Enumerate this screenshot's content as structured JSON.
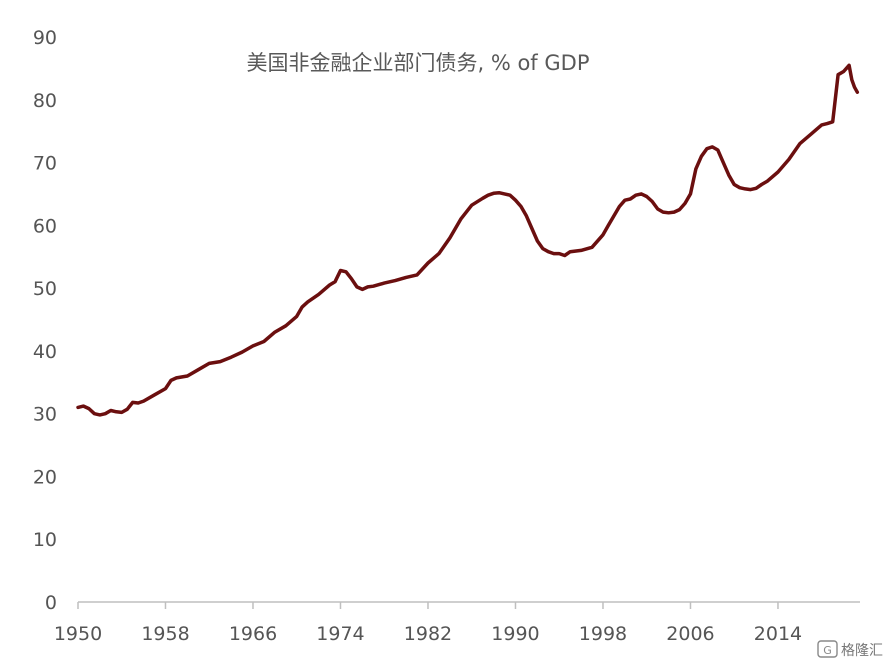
{
  "chart_data": {
    "type": "line",
    "title": "美国非金融企业部门债务, % of GDP",
    "xlabel": "",
    "ylabel": "",
    "xlim": [
      1950,
      2021.5
    ],
    "ylim": [
      0,
      90
    ],
    "xticks": [
      "1950",
      "1958",
      "1966",
      "1974",
      "1982",
      "1990",
      "1998",
      "2006",
      "2014"
    ],
    "yticks": [
      "0",
      "10",
      "20",
      "30",
      "40",
      "50",
      "60",
      "70",
      "80",
      "90"
    ],
    "grid": false,
    "legend": "none",
    "series": [
      {
        "color": "#6b0f0f",
        "x": [
          1950,
          1950.5,
          1951,
          1951.5,
          1952,
          1952.5,
          1953,
          1953.5,
          1954,
          1954.5,
          1955,
          1955.5,
          1956,
          1957,
          1958,
          1958.5,
          1959,
          1960,
          1961,
          1962,
          1963,
          1964,
          1965,
          1966,
          1967,
          1968,
          1969,
          1970,
          1970.5,
          1971,
          1972,
          1973,
          1973.5,
          1974,
          1974.5,
          1975,
          1975.5,
          1976,
          1976.5,
          1977,
          1978,
          1979,
          1980,
          1981,
          1982,
          1983,
          1984,
          1985,
          1986,
          1987,
          1987.5,
          1988,
          1988.5,
          1989,
          1989.5,
          1990,
          1990.5,
          1991,
          1991.5,
          1992,
          1992.5,
          1993,
          1993.5,
          1994,
          1994.5,
          1995,
          1996,
          1997,
          1998,
          1998.5,
          1999,
          1999.5,
          2000,
          2000.5,
          2001,
          2001.5,
          2002,
          2002.5,
          2003,
          2003.5,
          2004,
          2004.5,
          2005,
          2005.5,
          2006,
          2006.5,
          2007,
          2007.5,
          2008,
          2008.5,
          2009,
          2009.5,
          2010,
          2010.5,
          2011,
          2011.5,
          2012,
          2012.5,
          2013,
          2014,
          2015,
          2016,
          2017,
          2018,
          2018.5,
          2019,
          2019.5,
          2020,
          2020.5,
          2020.75,
          2021,
          2021.25
        ],
        "values": [
          31,
          31.2,
          30.8,
          30,
          29.8,
          30,
          30.5,
          30.3,
          30.2,
          30.7,
          31.8,
          31.7,
          32,
          33,
          34,
          35.3,
          35.7,
          36,
          37,
          38,
          38.3,
          39,
          39.8,
          40.8,
          41.5,
          43,
          44,
          45.5,
          47,
          47.8,
          49,
          50.5,
          51,
          52.8,
          52.6,
          51.5,
          50.2,
          49.8,
          50.2,
          50.3,
          50.8,
          51.2,
          51.7,
          52.1,
          54,
          55.5,
          58,
          61,
          63.2,
          64.3,
          64.8,
          65.1,
          65.2,
          65,
          64.8,
          64,
          63,
          61.5,
          59.5,
          57.5,
          56.3,
          55.8,
          55.5,
          55.5,
          55.2,
          55.8,
          56,
          56.5,
          58.5,
          60,
          61.5,
          63,
          64,
          64.2,
          64.8,
          65,
          64.6,
          63.8,
          62.6,
          62.1,
          62,
          62.1,
          62.5,
          63.5,
          65,
          69,
          71,
          72.2,
          72.5,
          72,
          70,
          68,
          66.5,
          66,
          65.8,
          65.7,
          65.9,
          66.5,
          67,
          68.5,
          70.5,
          73,
          74.5,
          76,
          76.2,
          76.5,
          84,
          84.5,
          85.5,
          83.2,
          82,
          81.2
        ]
      }
    ]
  },
  "watermark": "格隆汇"
}
